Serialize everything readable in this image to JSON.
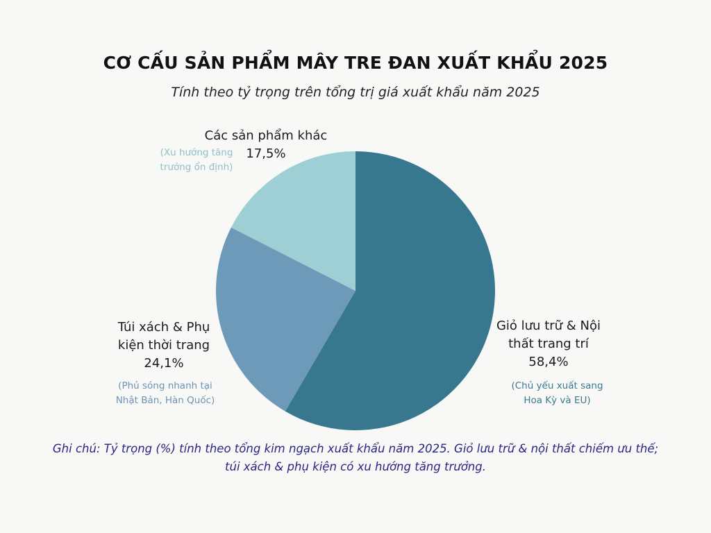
{
  "chart_data": {
    "type": "pie",
    "title": "CƠ CẤU SẢN PHẨM MÂY TRE ĐAN XUẤT KHẨU 2025",
    "subtitle": "Tính theo tỷ trọng trên tổng trị giá xuất khẩu năm 2025",
    "slices": [
      {
        "label_line1": "Giỏ lưu trữ & Nội",
        "label_line2": "thất trang trí",
        "value": 58.4,
        "value_label": "58,4%",
        "note_line1": "(Chủ yếu xuất sang",
        "note_line2": "Hoa Kỳ và EU)",
        "color": "#37788e",
        "note_color": "#3a7a90"
      },
      {
        "label_line1": "Túi xách & Phụ",
        "label_line2": "kiện thời trang",
        "value": 24.1,
        "value_label": "24,1%",
        "note_line1": "(Phủ sóng nhanh tại",
        "note_line2": "Nhật Bản, Hàn Quốc)",
        "color": "#6d9ab9",
        "note_color": "#6d93b3"
      },
      {
        "label_line1": "Các sản phẩm khác",
        "label_line2": "",
        "value": 17.5,
        "value_label": "17,5%",
        "note_line1": "(Xu hướng tăng",
        "note_line2": "trưởng ổn định)",
        "color": "#9ecfd5",
        "note_color": "#8fbfc8"
      }
    ],
    "start_angle": "12 o'clock",
    "direction": "clockwise",
    "legend": "none"
  },
  "footer": {
    "line1": "Ghi chú: Tỷ trọng (%) tính theo tổng kim ngạch xuất khẩu năm 2025. Giỏ lưu trữ & nội thất chiếm ưu thế;",
    "line2": "túi xách & phụ kiện có xu hướng tăng trưởng."
  }
}
